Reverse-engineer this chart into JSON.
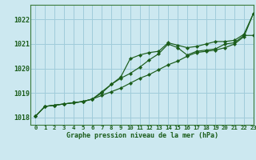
{
  "title": "Graphe pression niveau de la mer (hPa)",
  "bg_color": "#cce8f0",
  "grid_color": "#a0ccda",
  "line_color": "#1a5c1a",
  "marker_color": "#1a5c1a",
  "xlim": [
    -0.5,
    23
  ],
  "ylim": [
    1017.7,
    1022.6
  ],
  "yticks": [
    1018,
    1019,
    1020,
    1021,
    1022
  ],
  "xticks": [
    0,
    1,
    2,
    3,
    4,
    5,
    6,
    7,
    8,
    9,
    10,
    11,
    12,
    13,
    14,
    15,
    16,
    17,
    18,
    19,
    20,
    21,
    22,
    23
  ],
  "series": [
    [
      1018.05,
      1018.45,
      1018.5,
      1018.55,
      1018.6,
      1018.65,
      1018.75,
      1018.9,
      1019.05,
      1019.2,
      1019.4,
      1019.6,
      1019.75,
      1019.95,
      1020.15,
      1020.3,
      1020.5,
      1020.65,
      1020.7,
      1020.75,
      1020.85,
      1021.0,
      1021.3,
      1022.25
    ],
    [
      1018.05,
      1018.45,
      1018.5,
      1018.55,
      1018.6,
      1018.65,
      1018.75,
      1019.05,
      1019.35,
      1019.6,
      1019.8,
      1020.05,
      1020.35,
      1020.6,
      1021.0,
      1020.85,
      1020.55,
      1020.7,
      1020.75,
      1020.8,
      1021.0,
      1021.05,
      1021.35,
      1021.35
    ],
    [
      1018.05,
      1018.45,
      1018.5,
      1018.55,
      1018.6,
      1018.65,
      1018.75,
      1019.0,
      1019.35,
      1019.65,
      1020.4,
      1020.55,
      1020.65,
      1020.7,
      1021.05,
      1020.95,
      1020.85,
      1020.9,
      1021.0,
      1021.1,
      1021.1,
      1021.15,
      1021.4,
      1022.25
    ]
  ]
}
